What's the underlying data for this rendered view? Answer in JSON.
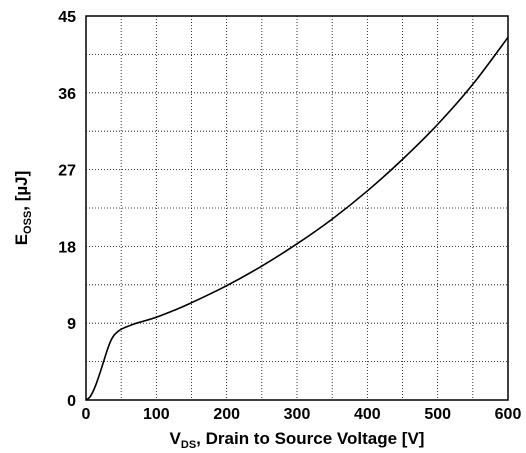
{
  "chart_data": {
    "type": "line",
    "title": "",
    "xlabel": {
      "main": "V",
      "sub": "DS",
      "rest": ", Drain to Source Voltage [V]"
    },
    "ylabel": {
      "main": "E",
      "sub": "OSS",
      "rest": ", [µJ]"
    },
    "xlim": [
      0,
      600
    ],
    "ylim": [
      0,
      45
    ],
    "xticks": [
      0,
      100,
      200,
      300,
      400,
      500,
      600
    ],
    "yticks": [
      0,
      9,
      18,
      27,
      36,
      45
    ],
    "grid": {
      "x_major_step": 50,
      "y_minor_step": 4.5,
      "style": "dotted"
    },
    "series": [
      {
        "x": [
          0,
          5,
          10,
          15,
          20,
          25,
          30,
          35,
          40,
          45,
          50,
          60,
          70,
          80,
          100,
          125,
          150,
          200,
          250,
          300,
          350,
          400,
          450,
          500,
          550,
          600
        ],
        "y": [
          0,
          0.3,
          1.0,
          2.0,
          3.2,
          4.5,
          5.8,
          6.9,
          7.6,
          8.0,
          8.3,
          8.65,
          8.95,
          9.2,
          9.7,
          10.5,
          11.4,
          13.4,
          15.7,
          18.3,
          21.2,
          24.5,
          28.2,
          32.3,
          37.0,
          42.5
        ]
      }
    ]
  }
}
